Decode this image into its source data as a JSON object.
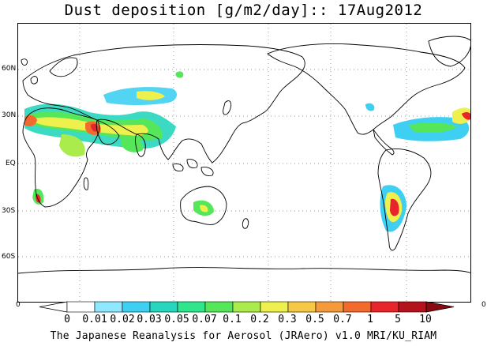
{
  "title": "Dust deposition [g/m2/day]:: 17Aug2012",
  "lat_labels": [
    "60N",
    "30N",
    "EQ",
    "30S",
    "60S"
  ],
  "colorbar": {
    "left_end": "0",
    "right_end": "0",
    "ticks": [
      "0",
      "0.01",
      "0.02",
      "0.03",
      "0.05",
      "0.07",
      "0.1",
      "0.2",
      "0.3",
      "0.5",
      "0.7",
      "1",
      "5",
      "10"
    ],
    "colors": [
      "#ffffff",
      "#ffffff",
      "#8fe8ff",
      "#3fcff2",
      "#28d6bd",
      "#2fe68c",
      "#56e65a",
      "#a9ec4b",
      "#eef04e",
      "#f5c845",
      "#f59a3b",
      "#f26a2e",
      "#e8252a",
      "#b2131c",
      "#8a0a12"
    ]
  },
  "footer": "The Japanese Reanalysis for Aerosol (JRAero) v1.0 MRI/KU_RIAM"
}
